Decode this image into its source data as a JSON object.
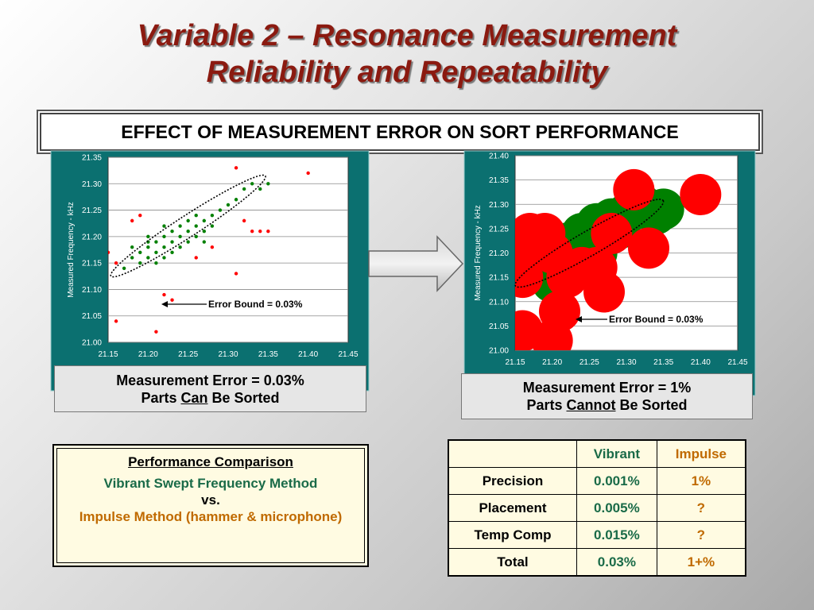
{
  "title": {
    "line1": "Variable 2 – Resonance Measurement",
    "line2": "Reliability and Repeatability"
  },
  "banner": "EFFECT OF MEASUREMENT ERROR ON SORT PERFORMANCE",
  "colors": {
    "title": "#8b1a10",
    "chart_frame": "#0b7070",
    "in_spec": "#008000",
    "out_spec": "#ff0000",
    "green_text": "#1a6b48",
    "orange_text": "#c06a00"
  },
  "chart_data": [
    {
      "type": "scatter",
      "title": "",
      "xlabel": "",
      "ylabel": "Measured Frequency - kHz",
      "xlim": [
        21.15,
        21.45
      ],
      "ylim": [
        21.0,
        21.35
      ],
      "xticks": [
        "21.15",
        "21.20",
        "21.25",
        "21.30",
        "21.35",
        "21.40",
        "21.45"
      ],
      "yticks": [
        "21.00",
        "21.05",
        "21.10",
        "21.15",
        "21.20",
        "21.25",
        "21.30",
        "21.35"
      ],
      "grid": true,
      "marker_size": "small",
      "annotation": "Error Bound = 0.03%",
      "series": [
        {
          "color": "#008000",
          "points": [
            [
              21.17,
              21.14
            ],
            [
              21.18,
              21.16
            ],
            [
              21.19,
              21.17
            ],
            [
              21.19,
              21.15
            ],
            [
              21.2,
              21.18
            ],
            [
              21.2,
              21.16
            ],
            [
              21.21,
              21.17
            ],
            [
              21.21,
              21.19
            ],
            [
              21.22,
              21.18
            ],
            [
              21.22,
              21.2
            ],
            [
              21.23,
              21.19
            ],
            [
              21.23,
              21.21
            ],
            [
              21.24,
              21.2
            ],
            [
              21.24,
              21.22
            ],
            [
              21.25,
              21.21
            ],
            [
              21.25,
              21.19
            ],
            [
              21.26,
              21.22
            ],
            [
              21.26,
              21.2
            ],
            [
              21.27,
              21.23
            ],
            [
              21.27,
              21.21
            ],
            [
              21.28,
              21.24
            ],
            [
              21.28,
              21.22
            ],
            [
              21.29,
              21.25
            ],
            [
              21.3,
              21.26
            ],
            [
              21.31,
              21.27
            ],
            [
              21.32,
              21.29
            ],
            [
              21.33,
              21.3
            ],
            [
              21.34,
              21.29
            ],
            [
              21.35,
              21.3
            ],
            [
              21.18,
              21.18
            ],
            [
              21.2,
              21.2
            ],
            [
              21.22,
              21.22
            ],
            [
              21.24,
              21.18
            ],
            [
              21.26,
              21.24
            ],
            [
              21.21,
              21.15
            ],
            [
              21.23,
              21.17
            ],
            [
              21.25,
              21.23
            ],
            [
              21.27,
              21.19
            ],
            [
              21.2,
              21.19
            ],
            [
              21.22,
              21.16
            ]
          ]
        },
        {
          "color": "#ff0000",
          "points": [
            [
              21.15,
              21.17
            ],
            [
              21.16,
              21.04
            ],
            [
              21.18,
              21.23
            ],
            [
              21.19,
              21.24
            ],
            [
              21.21,
              21.02
            ],
            [
              21.22,
              21.09
            ],
            [
              21.23,
              21.08
            ],
            [
              21.26,
              21.16
            ],
            [
              21.28,
              21.18
            ],
            [
              21.31,
              21.33
            ],
            [
              21.32,
              21.23
            ],
            [
              21.33,
              21.21
            ],
            [
              21.34,
              21.21
            ],
            [
              21.35,
              21.21
            ],
            [
              21.31,
              21.13
            ],
            [
              21.4,
              21.32
            ],
            [
              21.16,
              21.15
            ]
          ]
        }
      ],
      "ellipse": {
        "center": [
          21.25,
          21.22
        ],
        "rx_units": 0.115,
        "ry_units": 0.02,
        "angle": -33
      }
    },
    {
      "type": "scatter",
      "title": "",
      "xlabel": "",
      "ylabel": "Measured Frequency - kHz",
      "xlim": [
        21.15,
        21.45
      ],
      "ylim": [
        21.0,
        21.4
      ],
      "xticks": [
        "21.15",
        "21.20",
        "21.25",
        "21.30",
        "21.35",
        "21.40",
        "21.45"
      ],
      "yticks": [
        "21.00",
        "21.05",
        "21.10",
        "21.15",
        "21.20",
        "21.25",
        "21.30",
        "21.35",
        "21.40"
      ],
      "grid": true,
      "marker_size": "large",
      "annotation": "Error Bound = 0.03%",
      "series": [
        {
          "color": "#008000",
          "points": [
            [
              21.19,
              21.16
            ],
            [
              21.2,
              21.2
            ],
            [
              21.21,
              21.18
            ],
            [
              21.22,
              21.22
            ],
            [
              21.23,
              21.2
            ],
            [
              21.24,
              21.24
            ],
            [
              21.25,
              21.22
            ],
            [
              21.26,
              21.26
            ],
            [
              21.27,
              21.24
            ],
            [
              21.28,
              21.27
            ],
            [
              21.3,
              21.28
            ],
            [
              21.32,
              21.3
            ],
            [
              21.34,
              21.28
            ],
            [
              21.35,
              21.29
            ],
            [
              21.2,
              21.14
            ],
            [
              21.22,
              21.18
            ],
            [
              21.26,
              21.2
            ],
            [
              21.29,
              21.25
            ]
          ]
        },
        {
          "color": "#ff0000",
          "points": [
            [
              21.16,
              21.21
            ],
            [
              21.17,
              21.24
            ],
            [
              21.19,
              21.24
            ],
            [
              21.2,
              21.2
            ],
            [
              21.21,
              21.08
            ],
            [
              21.16,
              21.04
            ],
            [
              21.2,
              21.02
            ],
            [
              21.24,
              21.17
            ],
            [
              21.26,
              21.17
            ],
            [
              21.27,
              21.12
            ],
            [
              21.28,
              21.24
            ],
            [
              21.31,
              21.33
            ],
            [
              21.33,
              21.21
            ],
            [
              21.4,
              21.32
            ],
            [
              21.16,
              21.15
            ],
            [
              21.22,
              21.15
            ]
          ]
        }
      ],
      "ellipse": {
        "center": [
          21.25,
          21.22
        ],
        "rx_units": 0.115,
        "ry_units": 0.025,
        "angle": -30
      }
    }
  ],
  "captions": [
    {
      "line1": "Measurement Error = 0.03%",
      "pre": "Parts ",
      "emph": "Can",
      "post": " Be Sorted"
    },
    {
      "line1": "Measurement Error = 1%",
      "pre": "Parts ",
      "emph": "Cannot",
      "post": " Be Sorted"
    }
  ],
  "performance": {
    "heading": "Performance Comparison",
    "method1": "Vibrant Swept Frequency Method",
    "vs": "vs.",
    "method2": "Impulse Method (hammer & microphone)"
  },
  "table": {
    "headers": [
      "",
      "Vibrant",
      "Impulse"
    ],
    "rows": [
      [
        "Precision",
        "0.001%",
        "1%"
      ],
      [
        "Placement",
        "0.005%",
        "?"
      ],
      [
        "Temp Comp",
        "0.015%",
        "?"
      ],
      [
        "Total",
        "0.03%",
        "1+%"
      ]
    ]
  }
}
